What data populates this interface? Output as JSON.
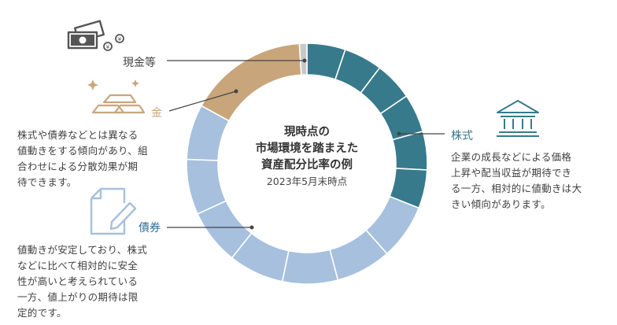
{
  "chart_data": {
    "type": "donut",
    "title_lines": [
      "現時点の",
      "市場環境を踏まえた",
      "資産配分比率の例"
    ],
    "subtitle": "2023年5月末時点",
    "categories": [
      "株式",
      "債券",
      "金",
      "現金等"
    ],
    "values": [
      31,
      52,
      16,
      1
    ],
    "units": "%",
    "segment_counts": [
      6,
      7,
      1,
      1
    ],
    "colors": {
      "株式": "#377a8b",
      "債券": "#a6c0de",
      "金": "#c9a57c",
      "現金等": "#c8c8c8"
    },
    "label_line_color": "#444444"
  },
  "labels": {
    "cash": "現金等",
    "gold": "金",
    "stocks": "株式",
    "bonds": "債券"
  },
  "descriptions": {
    "gold": [
      "株式や債券などとは異なる",
      "値動きをする傾向があり、組",
      "合わせによる分散効果が期",
      "待できます。"
    ],
    "stocks": [
      "企業の成長などによる価格",
      "上昇や配当収益が期待でき",
      "る一方、相対的に値動きは大",
      "きい傾向があります。"
    ],
    "bonds": [
      "値動きが安定しており、株式",
      "などに比べて相対的に安全",
      "性が高いと考えられている",
      "一方、値上がりの期待は限",
      "定的です。"
    ]
  },
  "icons": {
    "cash": "cash-icon",
    "gold": "gold-bars-icon",
    "stocks": "bank-building-icon",
    "bonds": "document-pen-icon"
  },
  "icon_colors": {
    "cash": "#555555",
    "gold": "#c9a57c",
    "stocks": "#377a8b",
    "bonds": "#a6c0de"
  }
}
